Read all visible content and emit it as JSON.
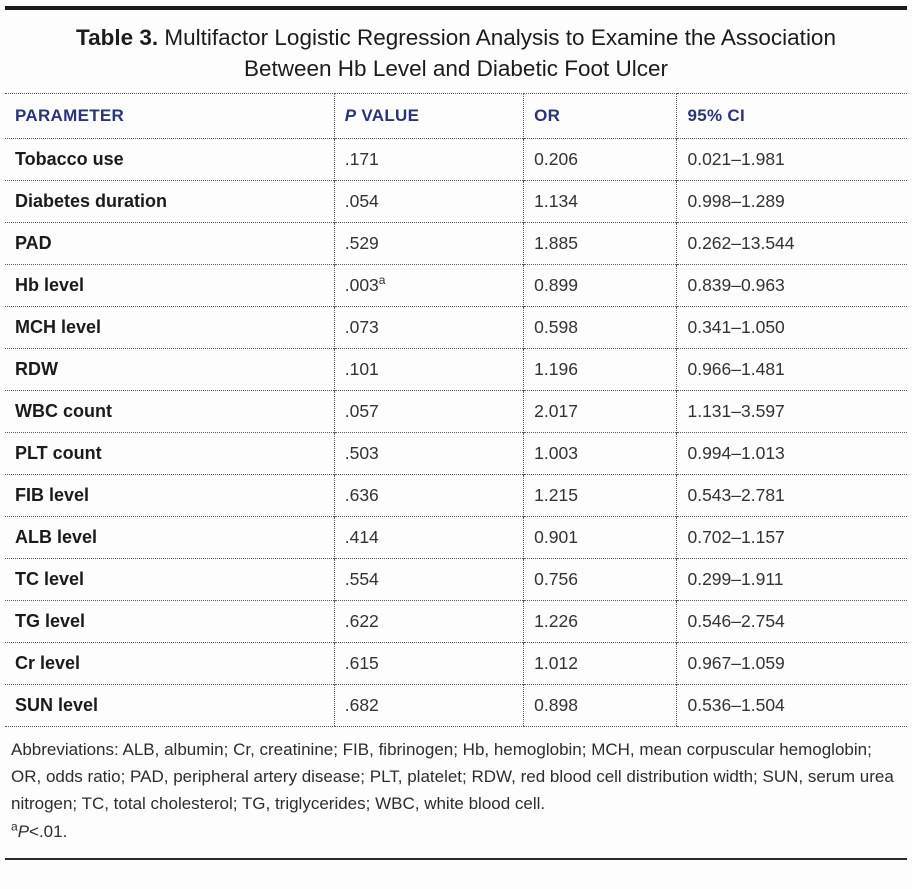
{
  "title": {
    "label": "Table 3.",
    "text": " Multifactor Logistic Regression Analysis to Examine the Association Between Hb Level and Diabetic Foot Ulcer"
  },
  "header": {
    "parameter": "PARAMETER",
    "p_italic": "P",
    "p_rest": " VALUE",
    "or": "OR",
    "ci": "95% CI"
  },
  "rows": [
    {
      "parameter": "Tobacco use",
      "p": ".171",
      "sup": "",
      "or": "0.206",
      "ci": "0.021–1.981"
    },
    {
      "parameter": "Diabetes duration",
      "p": ".054",
      "sup": "",
      "or": "1.134",
      "ci": "0.998–1.289"
    },
    {
      "parameter": "PAD",
      "p": ".529",
      "sup": "",
      "or": "1.885",
      "ci": "0.262–13.544"
    },
    {
      "parameter": "Hb level",
      "p": ".003",
      "sup": "a",
      "or": "0.899",
      "ci": "0.839–0.963"
    },
    {
      "parameter": "MCH level",
      "p": ".073",
      "sup": "",
      "or": "0.598",
      "ci": "0.341–1.050"
    },
    {
      "parameter": "RDW",
      "p": ".101",
      "sup": "",
      "or": "1.196",
      "ci": "0.966–1.481"
    },
    {
      "parameter": "WBC count",
      "p": ".057",
      "sup": "",
      "or": "2.017",
      "ci": "1.131–3.597"
    },
    {
      "parameter": "PLT count",
      "p": ".503",
      "sup": "",
      "or": "1.003",
      "ci": "0.994–1.013"
    },
    {
      "parameter": "FIB level",
      "p": ".636",
      "sup": "",
      "or": "1.215",
      "ci": "0.543–2.781"
    },
    {
      "parameter": "ALB level",
      "p": ".414",
      "sup": "",
      "or": "0.901",
      "ci": "0.702–1.157"
    },
    {
      "parameter": "TC level",
      "p": ".554",
      "sup": "",
      "or": "0.756",
      "ci": "0.299–1.911"
    },
    {
      "parameter": "TG level",
      "p": ".622",
      "sup": "",
      "or": "1.226",
      "ci": "0.546–2.754"
    },
    {
      "parameter": "Cr level",
      "p": ".615",
      "sup": "",
      "or": "1.012",
      "ci": "0.967–1.059"
    },
    {
      "parameter": "SUN level",
      "p": ".682",
      "sup": "",
      "or": "0.898",
      "ci": "0.536–1.504"
    }
  ],
  "footnotes": {
    "abbreviations": "Abbreviations: ALB, albumin; Cr, creatinine; FIB, fibrinogen; Hb, hemoglobin; MCH, mean corpuscular hemoglobin; OR, odds ratio; PAD, peripheral artery disease; PLT, platelet; RDW, red blood cell distribution width; SUN, serum urea nitrogen; TC, total cholesterol; TG, triglycerides; WBC, white blood cell.",
    "sig_marker": "a",
    "sig_p": "P",
    "sig_rest": "<.01."
  },
  "colors": {
    "header_navy": "#27357f",
    "rule_dark": "#1b1b1b",
    "body_text": "#333333"
  }
}
